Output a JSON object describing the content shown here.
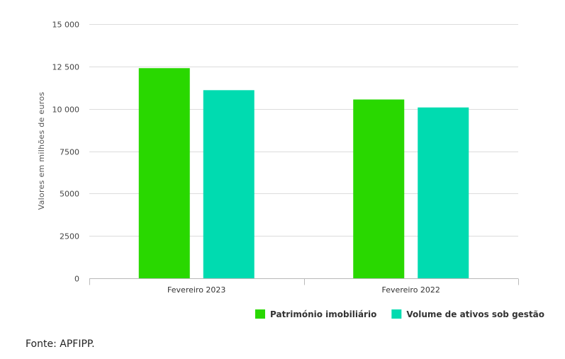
{
  "chart_data": {
    "type": "bar",
    "categories": [
      "Fevereiro 2023",
      "Fevereiro 2022"
    ],
    "series": [
      {
        "name": "Património imobiliário",
        "color": "#29d800",
        "values": [
          12400,
          10550
        ]
      },
      {
        "name": "Volume de ativos sob gestão",
        "color": "#00dbb0",
        "values": [
          11100,
          10080
        ]
      }
    ],
    "ylabel": "Valores em milhões de euros",
    "xlabel": "",
    "ylim": [
      0,
      15000
    ],
    "y_ticks": [
      0,
      2500,
      5000,
      7500,
      10000,
      12500,
      15000
    ],
    "y_tick_labels": [
      "0",
      "2500",
      "5000",
      "7500",
      "10 000",
      "12 500",
      "15 000"
    ],
    "grid": true,
    "legend_position": "bottom-right"
  },
  "source_text": "Fonte: APFIPP."
}
